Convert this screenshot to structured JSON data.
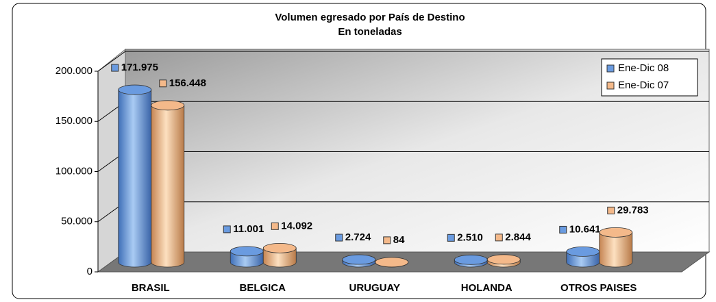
{
  "chart_data": {
    "type": "bar",
    "title": "Volumen egresado por País de Destino",
    "subtitle": "En toneladas",
    "categories": [
      "BRASIL",
      "BELGICA",
      "URUGUAY",
      "HOLANDA",
      "OTROS PAISES"
    ],
    "series": [
      {
        "name": "Ene-Dic 08",
        "color": "#6a9be0",
        "values": [
          171975,
          11001,
          2724,
          2510,
          10641
        ],
        "value_labels": [
          "171.975",
          "11.001",
          "2.724",
          "2.510",
          "10.641"
        ]
      },
      {
        "name": "Ene-Dic 07",
        "color": "#f4b98a",
        "values": [
          156448,
          14092,
          84,
          2844,
          29783
        ],
        "value_labels": [
          "156.448",
          "14.092",
          "84",
          "2.844",
          "29.783"
        ]
      }
    ],
    "ylim": [
      0,
      200000
    ],
    "yticks": [
      0,
      {
        "value": 50000,
        "label": "50.000"
      },
      {
        "value": 100000,
        "label": "100.000"
      },
      {
        "value": 150000,
        "label": "150.000"
      },
      {
        "value": 200000,
        "label": "200.000"
      }
    ],
    "grid": true,
    "legend": "top-right"
  }
}
